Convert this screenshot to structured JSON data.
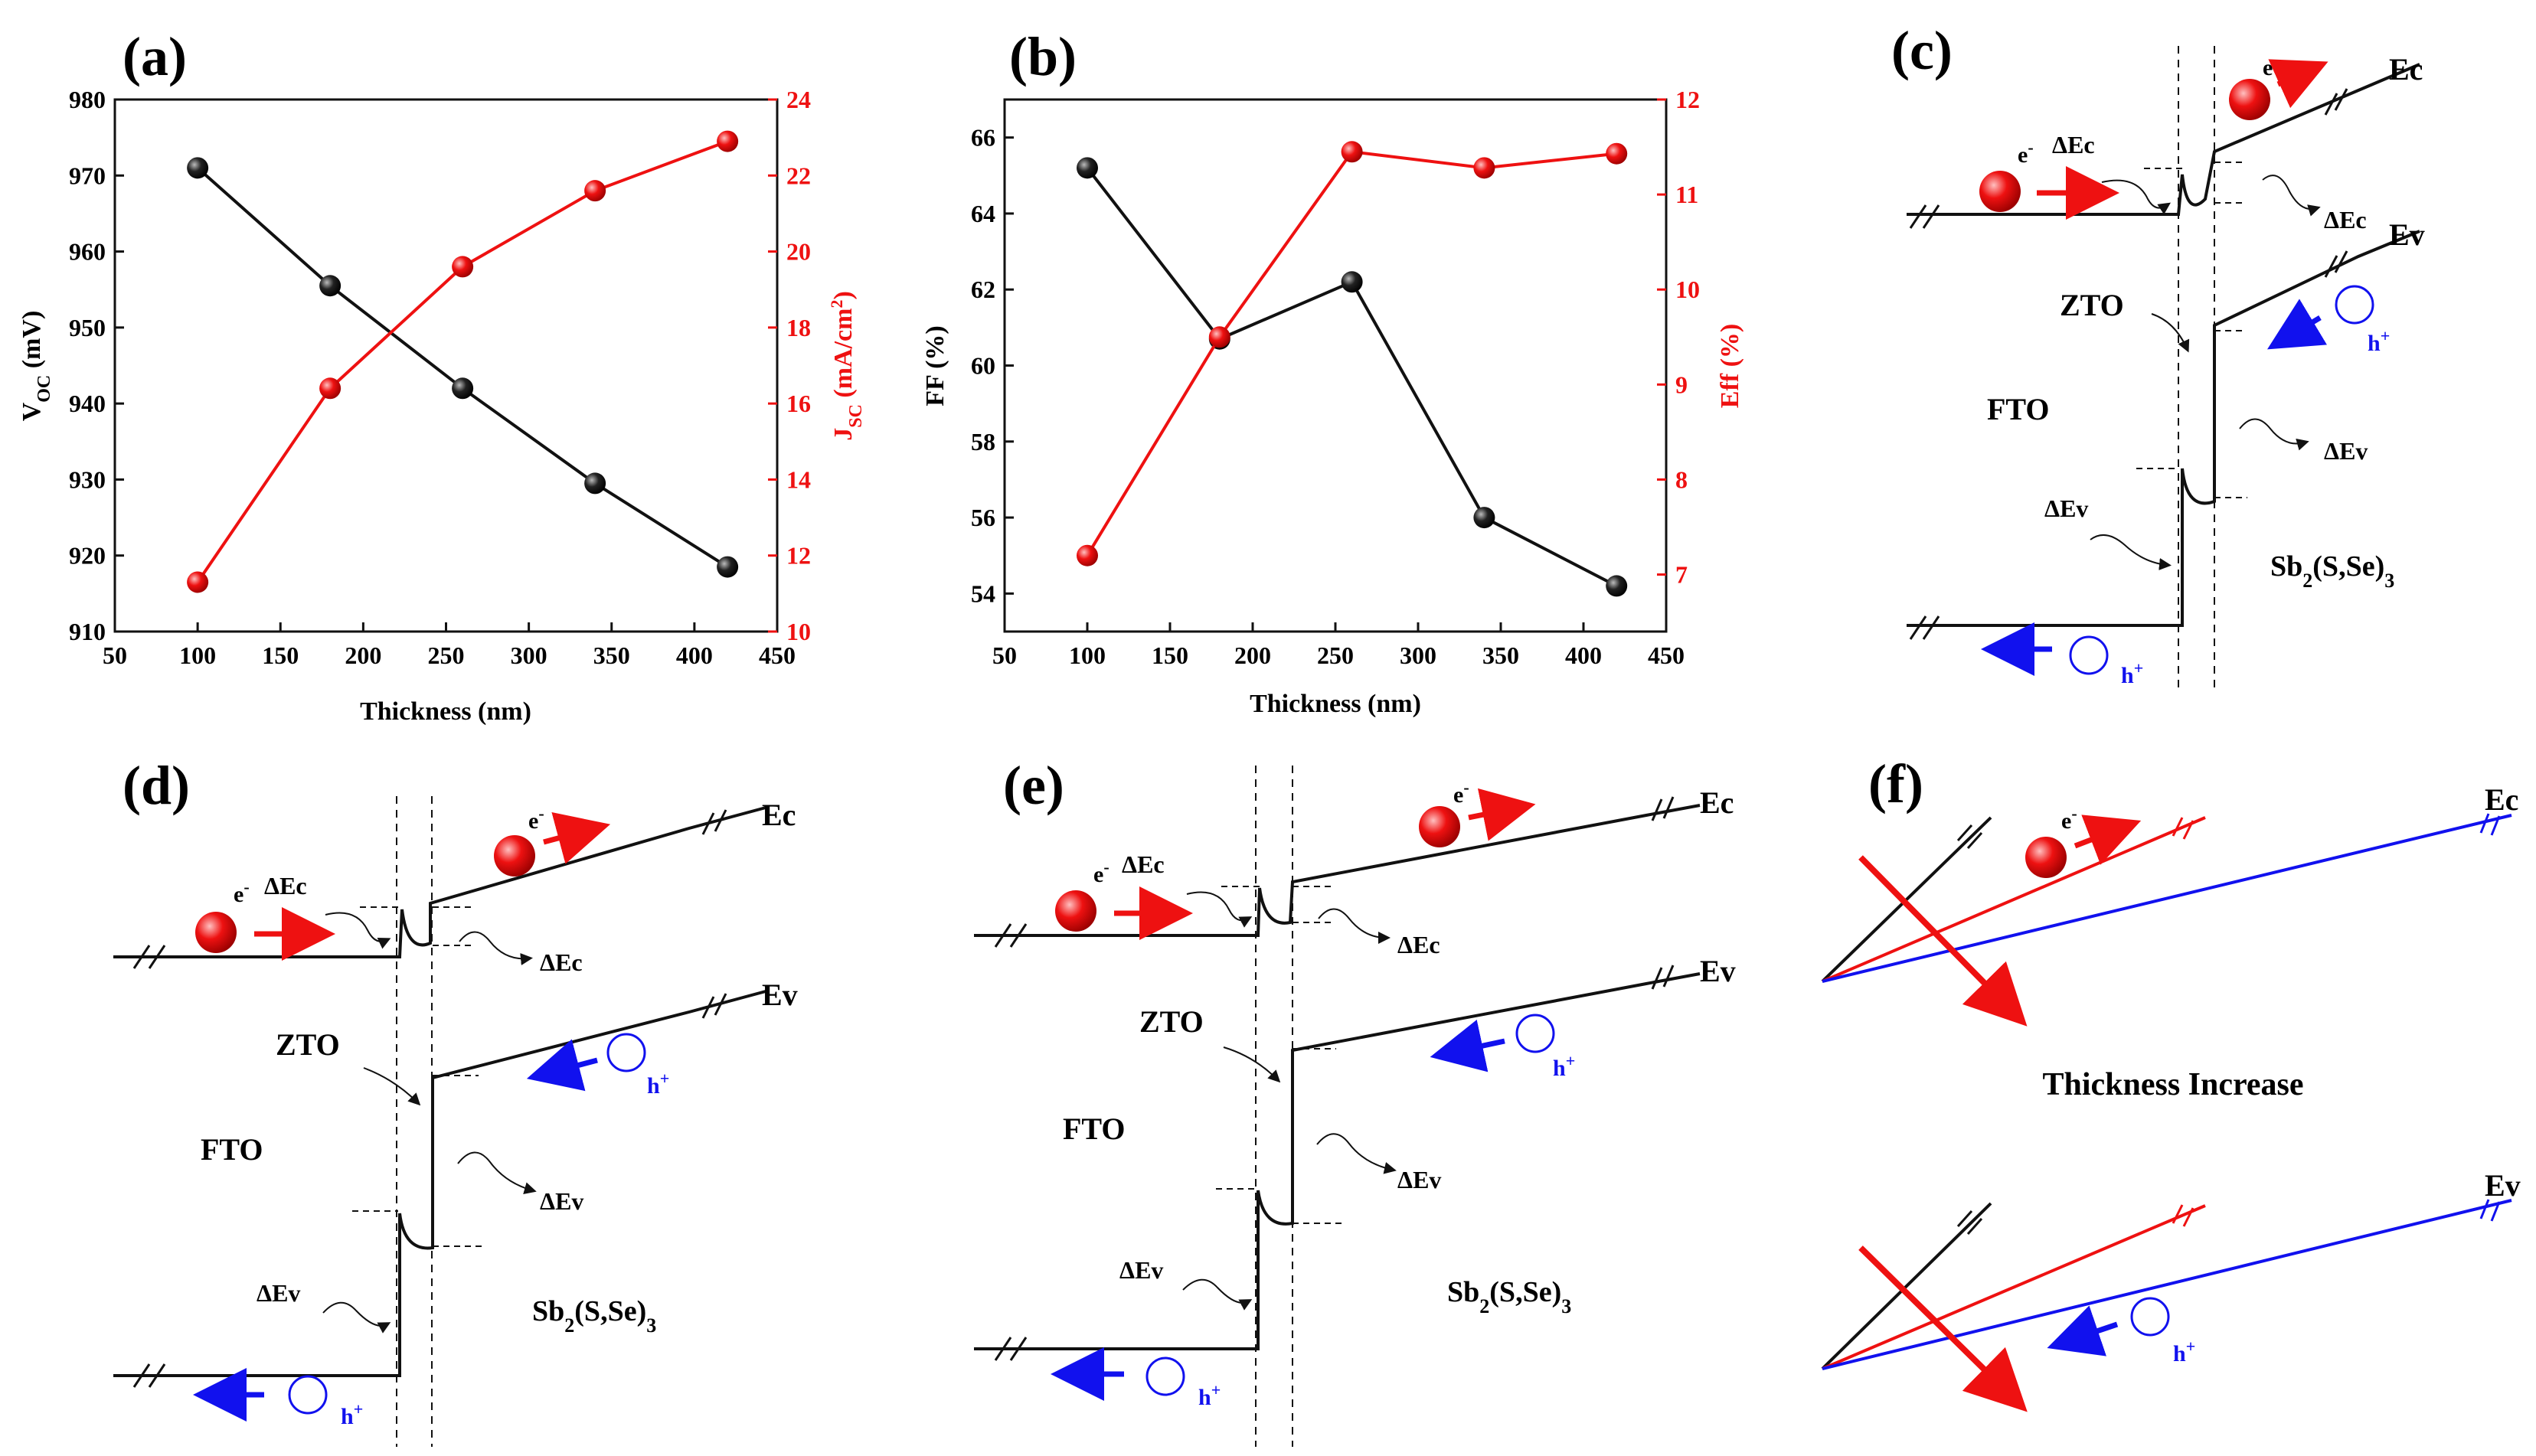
{
  "colors": {
    "black": "#111111",
    "red": "#ee1111",
    "blue": "#1111ee"
  },
  "chart_data": [
    {
      "panel": "(a)",
      "type": "line",
      "xlabel": "Thickness (nm)",
      "ylabel": "V",
      "ylabel_sub": "OC",
      "ylabel_rest": " (mV)",
      "y2label": "J",
      "y2label_sub": "SC",
      "y2label_rest": " (mA/cm",
      "y2label_sup": "2",
      "y2label_end": ")",
      "xlim": [
        50,
        450
      ],
      "ylim": [
        910,
        980
      ],
      "y2lim": [
        10,
        24
      ],
      "xticks": [
        50,
        100,
        150,
        200,
        250,
        300,
        350,
        400,
        450
      ],
      "yticks": [
        910,
        920,
        930,
        940,
        950,
        960,
        970,
        980
      ],
      "y2ticks": [
        10,
        12,
        14,
        16,
        18,
        20,
        22,
        24
      ],
      "series": [
        {
          "name": "VOC",
          "axis": "left",
          "color": "#111111",
          "x": [
            100,
            180,
            260,
            340,
            420
          ],
          "values": [
            971,
            955.5,
            942,
            929.5,
            918.5
          ]
        },
        {
          "name": "JSC",
          "axis": "right",
          "color": "#ee1111",
          "x": [
            100,
            180,
            260,
            340,
            420
          ],
          "values": [
            11.3,
            16.4,
            19.6,
            21.6,
            22.9
          ]
        }
      ]
    },
    {
      "panel": "(b)",
      "type": "line",
      "xlabel": "Thickness (nm)",
      "ylabel": "FF (%)",
      "y2label": "Eff (%)",
      "xlim": [
        50,
        450
      ],
      "ylim": [
        53,
        67
      ],
      "y2lim": [
        6.4,
        12
      ],
      "xticks": [
        50,
        100,
        150,
        200,
        250,
        300,
        350,
        400,
        450
      ],
      "yticks": [
        54,
        56,
        58,
        60,
        62,
        64,
        66
      ],
      "y2ticks": [
        7,
        8,
        9,
        10,
        11,
        12
      ],
      "series": [
        {
          "name": "FF",
          "axis": "left",
          "color": "#111111",
          "x": [
            100,
            180,
            260,
            340,
            420
          ],
          "values": [
            65.2,
            60.7,
            62.2,
            56.0,
            54.2
          ]
        },
        {
          "name": "Eff",
          "axis": "right",
          "color": "#ee1111",
          "x": [
            100,
            180,
            260,
            340,
            420
          ],
          "values": [
            7.2,
            9.5,
            11.45,
            11.28,
            11.43
          ]
        }
      ]
    }
  ],
  "panels": {
    "c": {
      "label": "(c)"
    },
    "d": {
      "label": "(d)"
    },
    "e": {
      "label": "(e)"
    },
    "f": {
      "label": "(f)",
      "caption": "Thickness Increase"
    }
  },
  "band_text": {
    "ec": "Ec",
    "ev": "Ev",
    "dec_base": "ΔE",
    "dec_sub": "c",
    "dev_base": "ΔE",
    "dev_sub": "v",
    "zto": "ZTO",
    "fto": "FTO",
    "sb_a": "Sb",
    "sb_sub": "2",
    "sb_b": "(S,Se)",
    "sb_sub2": "3",
    "electron": "e",
    "electron_sup": "-",
    "hole": "h",
    "hole_sup": "+"
  }
}
